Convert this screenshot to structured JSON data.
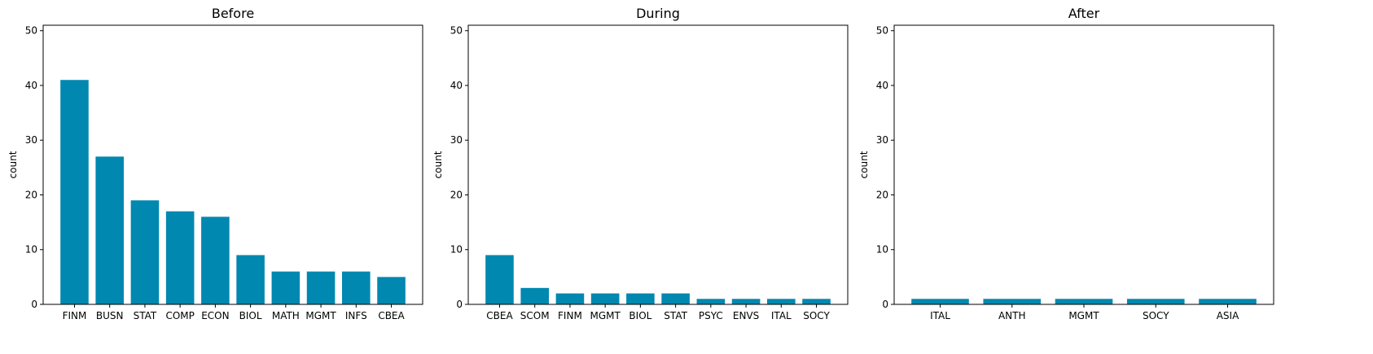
{
  "chart_data": [
    {
      "type": "bar",
      "title": "Before",
      "xlabel": "",
      "ylabel": "count",
      "ylim": [
        0,
        51
      ],
      "yticks": [
        0,
        10,
        20,
        30,
        40,
        50
      ],
      "categories": [
        "FINM",
        "BUSN",
        "STAT",
        "COMP",
        "ECON",
        "BIOL",
        "MATH",
        "MGMT",
        "INFS",
        "CBEA"
      ],
      "values": [
        41,
        27,
        19,
        17,
        16,
        9,
        6,
        6,
        6,
        5
      ],
      "bar_color": "#0088b0",
      "grid": false
    },
    {
      "type": "bar",
      "title": "During",
      "xlabel": "",
      "ylabel": "count",
      "ylim": [
        0,
        51
      ],
      "yticks": [
        0,
        10,
        20,
        30,
        40,
        50
      ],
      "categories": [
        "CBEA",
        "SCOM",
        "FINM",
        "MGMT",
        "BIOL",
        "STAT",
        "PSYC",
        "ENVS",
        "ITAL",
        "SOCY"
      ],
      "values": [
        9,
        3,
        2,
        2,
        2,
        2,
        1,
        1,
        1,
        1
      ],
      "bar_color": "#0088b0",
      "grid": false
    },
    {
      "type": "bar",
      "title": "After",
      "xlabel": "",
      "ylabel": "count",
      "ylim": [
        0,
        51
      ],
      "yticks": [
        0,
        10,
        20,
        30,
        40,
        50
      ],
      "categories": [
        "ITAL",
        "ANTH",
        "MGMT",
        "SOCY",
        "ASIA"
      ],
      "values": [
        1,
        1,
        1,
        1,
        1
      ],
      "bar_color": "#0088b0",
      "grid": false
    }
  ]
}
